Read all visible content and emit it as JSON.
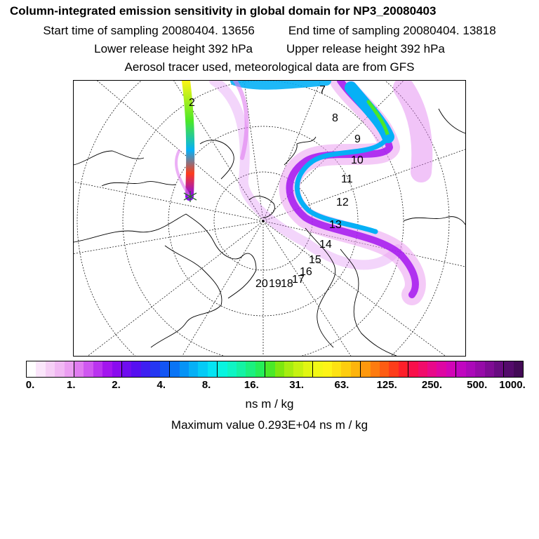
{
  "title": "Column-integrated emission sensitivity in global domain for NP3_20080403",
  "sampling": {
    "start": "Start time of sampling 20080404. 13656",
    "end": "End time of sampling 20080404. 13818"
  },
  "release": {
    "lower": "Lower release height  392 hPa",
    "upper": "Upper release height  392 hPa"
  },
  "tracer_note": "Aerosol tracer used, meteorological data are from GFS",
  "map": {
    "day_labels": [
      "2",
      "7",
      "8",
      "9",
      "10",
      "11",
      "12",
      "13",
      "14",
      "15",
      "16",
      "17",
      "18",
      "19",
      "20"
    ]
  },
  "colorbar": {
    "colors": [
      "#ffffff",
      "#fbe6fb",
      "#f6cff6",
      "#f1b8f3",
      "#eb9ef1",
      "#e07cf0",
      "#cf58f0",
      "#ba34ef",
      "#a316ee",
      "#8a0bee",
      "#6f0cef",
      "#560ff0",
      "#3e1ff1",
      "#2537f2",
      "#1255f3",
      "#0a74f5",
      "#0693f6",
      "#06b0f6",
      "#05cbf6",
      "#05e4f3",
      "#08f4e0",
      "#0ef5c4",
      "#14f2a4",
      "#1bf07f",
      "#25ee58",
      "#4ae828",
      "#7ee70f",
      "#a6ed10",
      "#c6f211",
      "#e1f612",
      "#f2f815",
      "#fdf416",
      "#fde212",
      "#fdcd0f",
      "#fdb40d",
      "#fd980d",
      "#fd7b0f",
      "#fd5c13",
      "#fd3d1a",
      "#fd1f2a",
      "#f9104a",
      "#f10c6b",
      "#e8098a",
      "#de06a3",
      "#d105b6",
      "#c006c0",
      "#ab09b9",
      "#960ba8",
      "#7f0c94",
      "#680c80",
      "#540b6b",
      "#430a56"
    ],
    "tick_labels": [
      "0.",
      "1.",
      "2.",
      "4.",
      "8.",
      "16.",
      "31.",
      "63.",
      "125.",
      "250.",
      "500.",
      "1000."
    ]
  },
  "units": "ns m / kg",
  "max_value": "Maximum value  0.293E+04 ns m / kg"
}
